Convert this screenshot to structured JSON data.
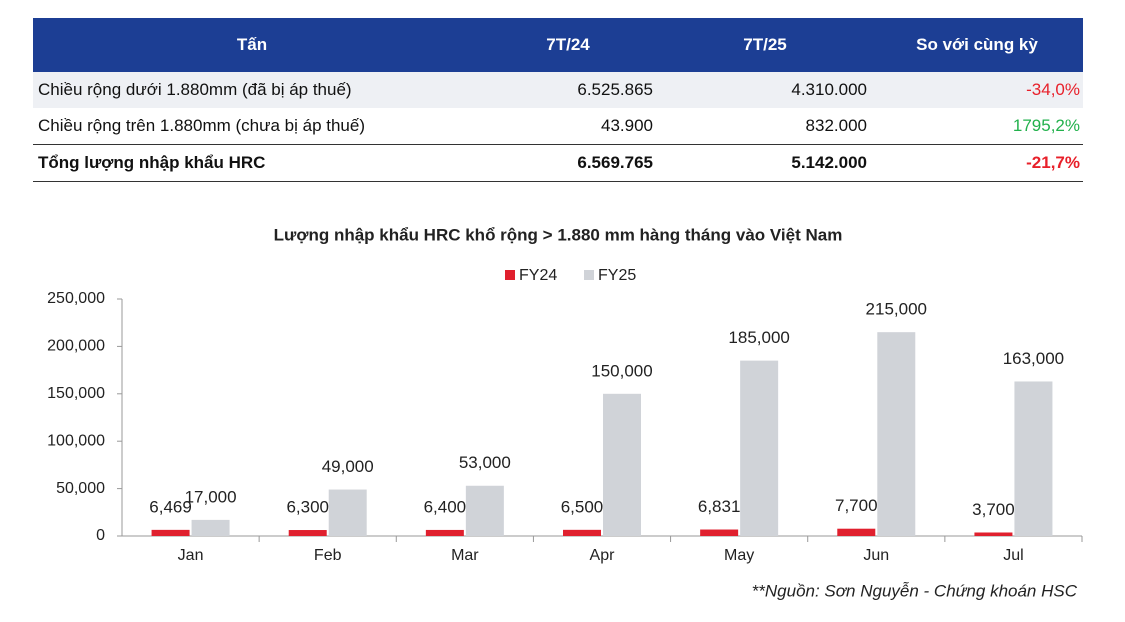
{
  "table": {
    "header": [
      "Tấn",
      "7T/24",
      "7T/25",
      "So với cùng kỳ"
    ],
    "rows": [
      {
        "cells": [
          "Chiều rộng dưới 1.880mm (đã bị áp thuế)",
          "6.525.865",
          "4.310.000",
          "-34,0%"
        ],
        "change_color": "#e8202a"
      },
      {
        "cells": [
          "Chiều rộng trên 1.880mm (chưa bị áp thuế)",
          "43.900",
          "832.000",
          "1795,2%"
        ],
        "change_color": "#22b14c"
      },
      {
        "cells": [
          "Tổng lượng nhập khẩu HRC",
          "6.569.765",
          "5.142.000",
          "-21,7%"
        ],
        "change_color": "#e8202a"
      }
    ]
  },
  "chart_data": {
    "type": "bar",
    "title": "Lượng nhập khẩu HRC khổ rộng > 1.880 mm hàng tháng vào Việt Nam",
    "categories": [
      "Jan",
      "Feb",
      "Mar",
      "Apr",
      "May",
      "Jun",
      "Jul"
    ],
    "series": [
      {
        "name": "FY24",
        "color": "#e0202e",
        "values": [
          6469,
          6300,
          6400,
          6500,
          6831,
          7700,
          3700
        ],
        "value_labels": [
          "6,469",
          "6,300",
          "6,400",
          "6,500",
          "6,831",
          "7,700",
          "3,700"
        ]
      },
      {
        "name": "FY25",
        "color": "#d0d3d8",
        "values": [
          17000,
          49000,
          53000,
          150000,
          185000,
          215000,
          163000
        ],
        "value_labels": [
          "17,000",
          "49,000",
          "53,000",
          "150,000",
          "185,000",
          "215,000",
          "163,000"
        ]
      }
    ],
    "ylim": [
      0,
      250000
    ],
    "yticks": [
      0,
      {
        "value": 50000,
        "label": "50,000"
      },
      {
        "value": 100000,
        "label": "100,000"
      },
      {
        "value": 150000,
        "label": "150,000"
      },
      {
        "value": 200000,
        "label": "200,000"
      },
      {
        "value": 250000,
        "label": "250,000"
      }
    ],
    "legend": "top",
    "source": "**Nguồn: Sơn Nguyễn - Chứng khoán HSC"
  }
}
